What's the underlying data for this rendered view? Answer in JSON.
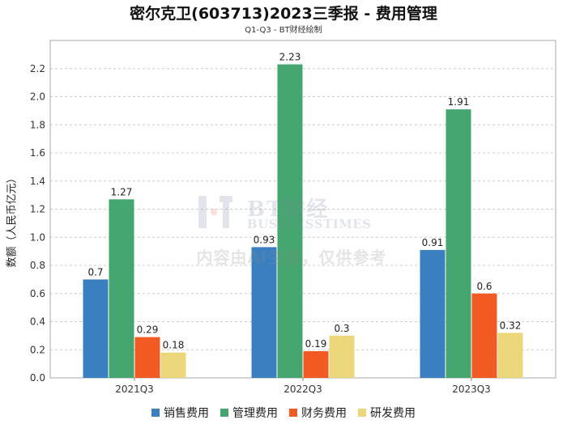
{
  "chart_data": {
    "type": "bar",
    "title": "密尔克卫(603713)2023三季报 - 费用管理",
    "subtitle": "Q1-Q3 - BT财经绘制",
    "ylabel": "数额（人民币亿元）",
    "xlabel": "",
    "ylim": [
      0,
      2.4
    ],
    "yticks": [
      "0.0",
      "0.2",
      "0.4",
      "0.6",
      "0.8",
      "1.0",
      "1.2",
      "1.4",
      "1.6",
      "1.8",
      "2.0",
      "2.2"
    ],
    "categories": [
      "2021Q3",
      "2022Q3",
      "2023Q3"
    ],
    "series": [
      {
        "name": "销售费用",
        "color": "#3a80c0",
        "values": [
          0.7,
          0.93,
          0.91
        ],
        "labels": [
          "0.7",
          "0.93",
          "0.91"
        ]
      },
      {
        "name": "管理费用",
        "color": "#45a56e",
        "values": [
          1.27,
          2.23,
          1.91
        ],
        "labels": [
          "1.27",
          "2.23",
          "1.91"
        ]
      },
      {
        "name": "财务费用",
        "color": "#f15a22",
        "values": [
          0.29,
          0.19,
          0.6
        ],
        "labels": [
          "0.29",
          "0.19",
          "0.6"
        ]
      },
      {
        "name": "研发费用",
        "color": "#ecd67a",
        "values": [
          0.18,
          0.3,
          0.32
        ],
        "labels": [
          "0.18",
          "0.3",
          "0.32"
        ]
      }
    ],
    "grid": true,
    "legend": "bottom"
  },
  "watermark": {
    "brand": "BT财经",
    "brand_sub": "BUSINESSTIMES",
    "note": "内容由AI生成，仅供参考"
  }
}
